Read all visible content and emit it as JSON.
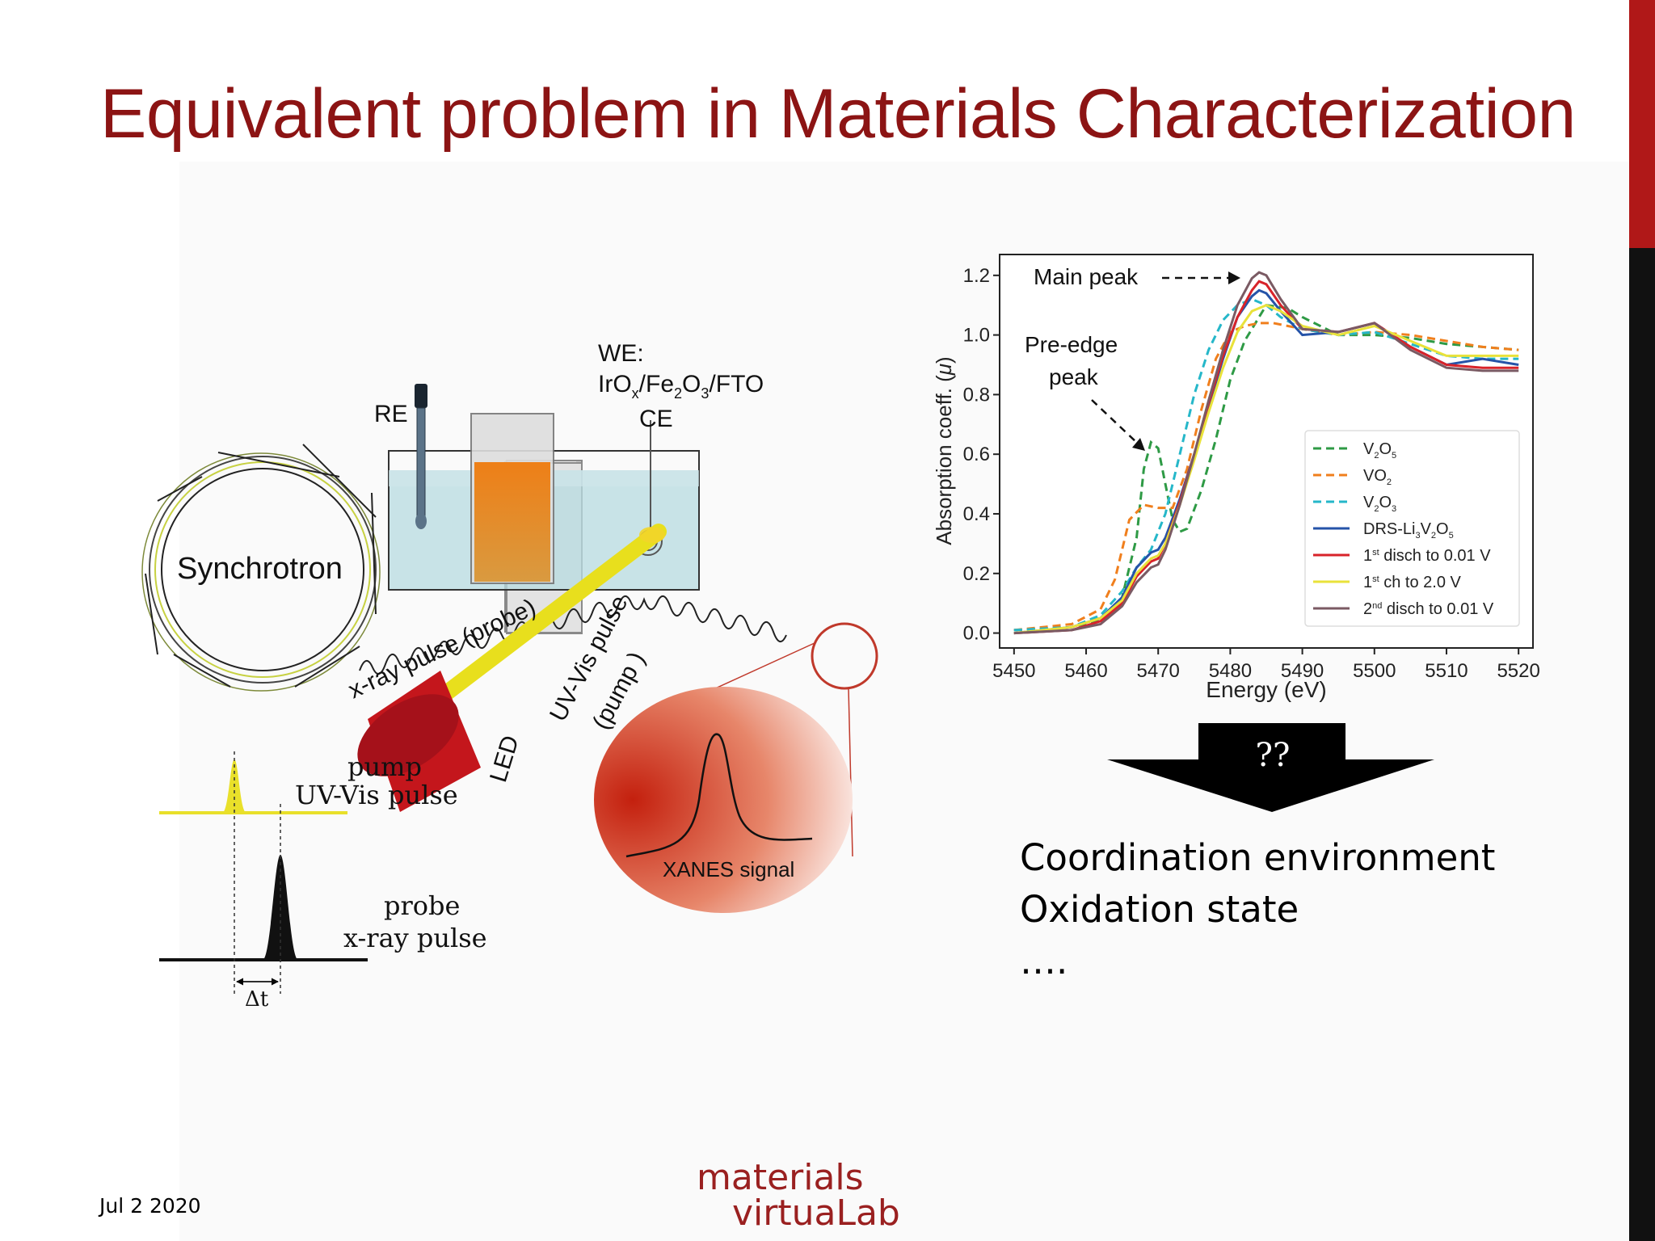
{
  "slide": {
    "title": "Equivalent problem in Materials Characterization",
    "date": "Jul 2 2020",
    "logo_line1": "materials",
    "logo_line2": "virtuaLab",
    "arrow_label": "??",
    "conclusions": [
      "Coordination environment",
      "Oxidation state",
      "…."
    ]
  },
  "colors": {
    "title": "#8c1414",
    "accent_red": "#b01818",
    "accent_black": "#111111"
  },
  "diagram": {
    "synchrotron": "Synchrotron",
    "xray_pulse": "x-ray pulse (probe)",
    "uvvis_pulse": "UV-Vis pulse",
    "uvvis_pump": "(pump )",
    "led": "LED",
    "we_label": "WE:",
    "we_material": "IrOx/Fe2O3/FTO",
    "re": "RE",
    "ce": "CE",
    "xanes": "XANES signal",
    "pump_line1": "pump",
    "pump_line2": "UV-Vis pulse",
    "probe_line1": "probe",
    "probe_line2": "x-ray pulse",
    "delta_t": "Δt"
  },
  "chart_data": {
    "type": "line",
    "title": "",
    "xlabel": "Energy (eV)",
    "ylabel": "Absorption coeff. (μ)",
    "xlim": [
      5448,
      5522
    ],
    "ylim": [
      -0.05,
      1.27
    ],
    "xticks": [
      5450,
      5460,
      5470,
      5480,
      5490,
      5500,
      5510,
      5520
    ],
    "yticks": [
      0.0,
      0.2,
      0.4,
      0.6,
      0.8,
      1.0,
      1.2
    ],
    "legend_position": "bottom-right",
    "annotations": [
      "Main peak",
      "Pre-edge peak"
    ],
    "series": [
      {
        "name": "V2O5",
        "label_html": "V<tspan font-size='11' dy='5'>2</tspan><tspan dy='-5'>O</tspan><tspan font-size='11' dy='5'>5</tspan>",
        "color": "#2e9a45",
        "style": "dashed",
        "x": [
          5450,
          5458,
          5463,
          5465,
          5467,
          5468,
          5469,
          5470,
          5471,
          5472,
          5473,
          5474,
          5476,
          5478,
          5480,
          5482,
          5485,
          5488,
          5490,
          5495,
          5500,
          5505,
          5510,
          5515,
          5520
        ],
        "y": [
          0.01,
          0.02,
          0.05,
          0.12,
          0.32,
          0.55,
          0.64,
          0.62,
          0.5,
          0.38,
          0.34,
          0.35,
          0.48,
          0.65,
          0.85,
          0.98,
          1.1,
          1.09,
          1.06,
          1.0,
          1.0,
          0.99,
          0.97,
          0.96,
          0.95
        ]
      },
      {
        "name": "VO2",
        "label_html": "VO<tspan font-size='11' dy='5'>2</tspan>",
        "color": "#f07f1d",
        "style": "dashed",
        "x": [
          5450,
          5458,
          5462,
          5464,
          5466,
          5468,
          5470,
          5472,
          5474,
          5476,
          5478,
          5480,
          5482,
          5484,
          5486,
          5488,
          5490,
          5495,
          5500,
          5505,
          5510,
          5515,
          5520
        ],
        "y": [
          0.01,
          0.03,
          0.08,
          0.18,
          0.38,
          0.43,
          0.42,
          0.42,
          0.55,
          0.75,
          0.92,
          1.01,
          1.03,
          1.04,
          1.04,
          1.03,
          1.02,
          1.0,
          1.01,
          1.0,
          0.98,
          0.96,
          0.95
        ]
      },
      {
        "name": "V2O3",
        "label_html": "V<tspan font-size='11' dy='5'>2</tspan><tspan dy='-5'>O</tspan><tspan font-size='11' dy='5'>3</tspan>",
        "color": "#25b7c9",
        "style": "dashed",
        "x": [
          5450,
          5458,
          5462,
          5465,
          5467,
          5469,
          5471,
          5473,
          5475,
          5477,
          5479,
          5481,
          5483,
          5485,
          5487,
          5490,
          5495,
          5500,
          5505,
          5510,
          5515,
          5520
        ],
        "y": [
          0.01,
          0.02,
          0.06,
          0.14,
          0.22,
          0.28,
          0.4,
          0.6,
          0.8,
          0.95,
          1.05,
          1.1,
          1.12,
          1.1,
          1.06,
          1.02,
          1.0,
          1.01,
          0.97,
          0.93,
          0.92,
          0.92
        ]
      },
      {
        "name": "DRS-Li3V2O5",
        "label_html": "DRS-Li<tspan font-size='11' dy='5'>3</tspan><tspan dy='-5'>V</tspan><tspan font-size='11' dy='5'>2</tspan><tspan dy='-5'>O</tspan><tspan font-size='11' dy='5'>5</tspan>",
        "color": "#2553a8",
        "style": "solid",
        "x": [
          5450,
          5458,
          5462,
          5465,
          5467,
          5469,
          5470,
          5471,
          5473,
          5475,
          5477,
          5479,
          5481,
          5483,
          5484,
          5485,
          5487,
          5490,
          5495,
          5500,
          5505,
          5510,
          5515,
          5520
        ],
        "y": [
          0.0,
          0.02,
          0.05,
          0.12,
          0.22,
          0.27,
          0.28,
          0.32,
          0.45,
          0.6,
          0.76,
          0.92,
          1.06,
          1.13,
          1.15,
          1.14,
          1.08,
          1.0,
          1.01,
          1.04,
          0.96,
          0.9,
          0.92,
          0.9
        ]
      },
      {
        "name": "1st disch to 0.01 V",
        "label_html": "1<tspan font-size='11' dy='-7'>st</tspan><tspan dy='7'> disch to 0.01 V</tspan>",
        "color": "#d8232a",
        "style": "solid",
        "x": [
          5450,
          5458,
          5462,
          5465,
          5467,
          5469,
          5470,
          5471,
          5473,
          5475,
          5477,
          5479,
          5481,
          5483,
          5484,
          5485,
          5487,
          5490,
          5495,
          5500,
          5505,
          5510,
          5515,
          5520
        ],
        "y": [
          0.0,
          0.01,
          0.04,
          0.1,
          0.19,
          0.24,
          0.25,
          0.3,
          0.44,
          0.6,
          0.77,
          0.93,
          1.06,
          1.15,
          1.18,
          1.17,
          1.1,
          1.02,
          1.01,
          1.04,
          0.96,
          0.9,
          0.89,
          0.89
        ]
      },
      {
        "name": "1st ch to 2.0 V",
        "label_html": "1<tspan font-size='11' dy='-7'>st</tspan><tspan dy='7'> ch to 2.0 V</tspan>",
        "color": "#e9e23a",
        "style": "solid",
        "x": [
          5450,
          5458,
          5462,
          5465,
          5467,
          5469,
          5470,
          5471,
          5473,
          5475,
          5477,
          5479,
          5481,
          5483,
          5485,
          5487,
          5490,
          5495,
          5500,
          5505,
          5510,
          5515,
          5520
        ],
        "y": [
          0.0,
          0.02,
          0.05,
          0.11,
          0.2,
          0.25,
          0.26,
          0.3,
          0.43,
          0.58,
          0.74,
          0.89,
          1.01,
          1.08,
          1.1,
          1.08,
          1.03,
          1.0,
          1.03,
          0.98,
          0.93,
          0.93,
          0.93
        ]
      },
      {
        "name": "2nd disch to 0.01 V",
        "label_html": "2<tspan font-size='11' dy='-7'>nd</tspan><tspan dy='7'> disch to 0.01 V</tspan>",
        "color": "#7a5a63",
        "style": "solid",
        "x": [
          5450,
          5458,
          5462,
          5465,
          5467,
          5469,
          5470,
          5471,
          5473,
          5475,
          5477,
          5479,
          5481,
          5483,
          5484,
          5485,
          5487,
          5490,
          5495,
          5500,
          5505,
          5510,
          5515,
          5520
        ],
        "y": [
          0.0,
          0.01,
          0.03,
          0.09,
          0.17,
          0.22,
          0.23,
          0.28,
          0.43,
          0.6,
          0.78,
          0.95,
          1.1,
          1.19,
          1.21,
          1.2,
          1.12,
          1.02,
          1.01,
          1.04,
          0.95,
          0.89,
          0.88,
          0.88
        ]
      }
    ]
  }
}
